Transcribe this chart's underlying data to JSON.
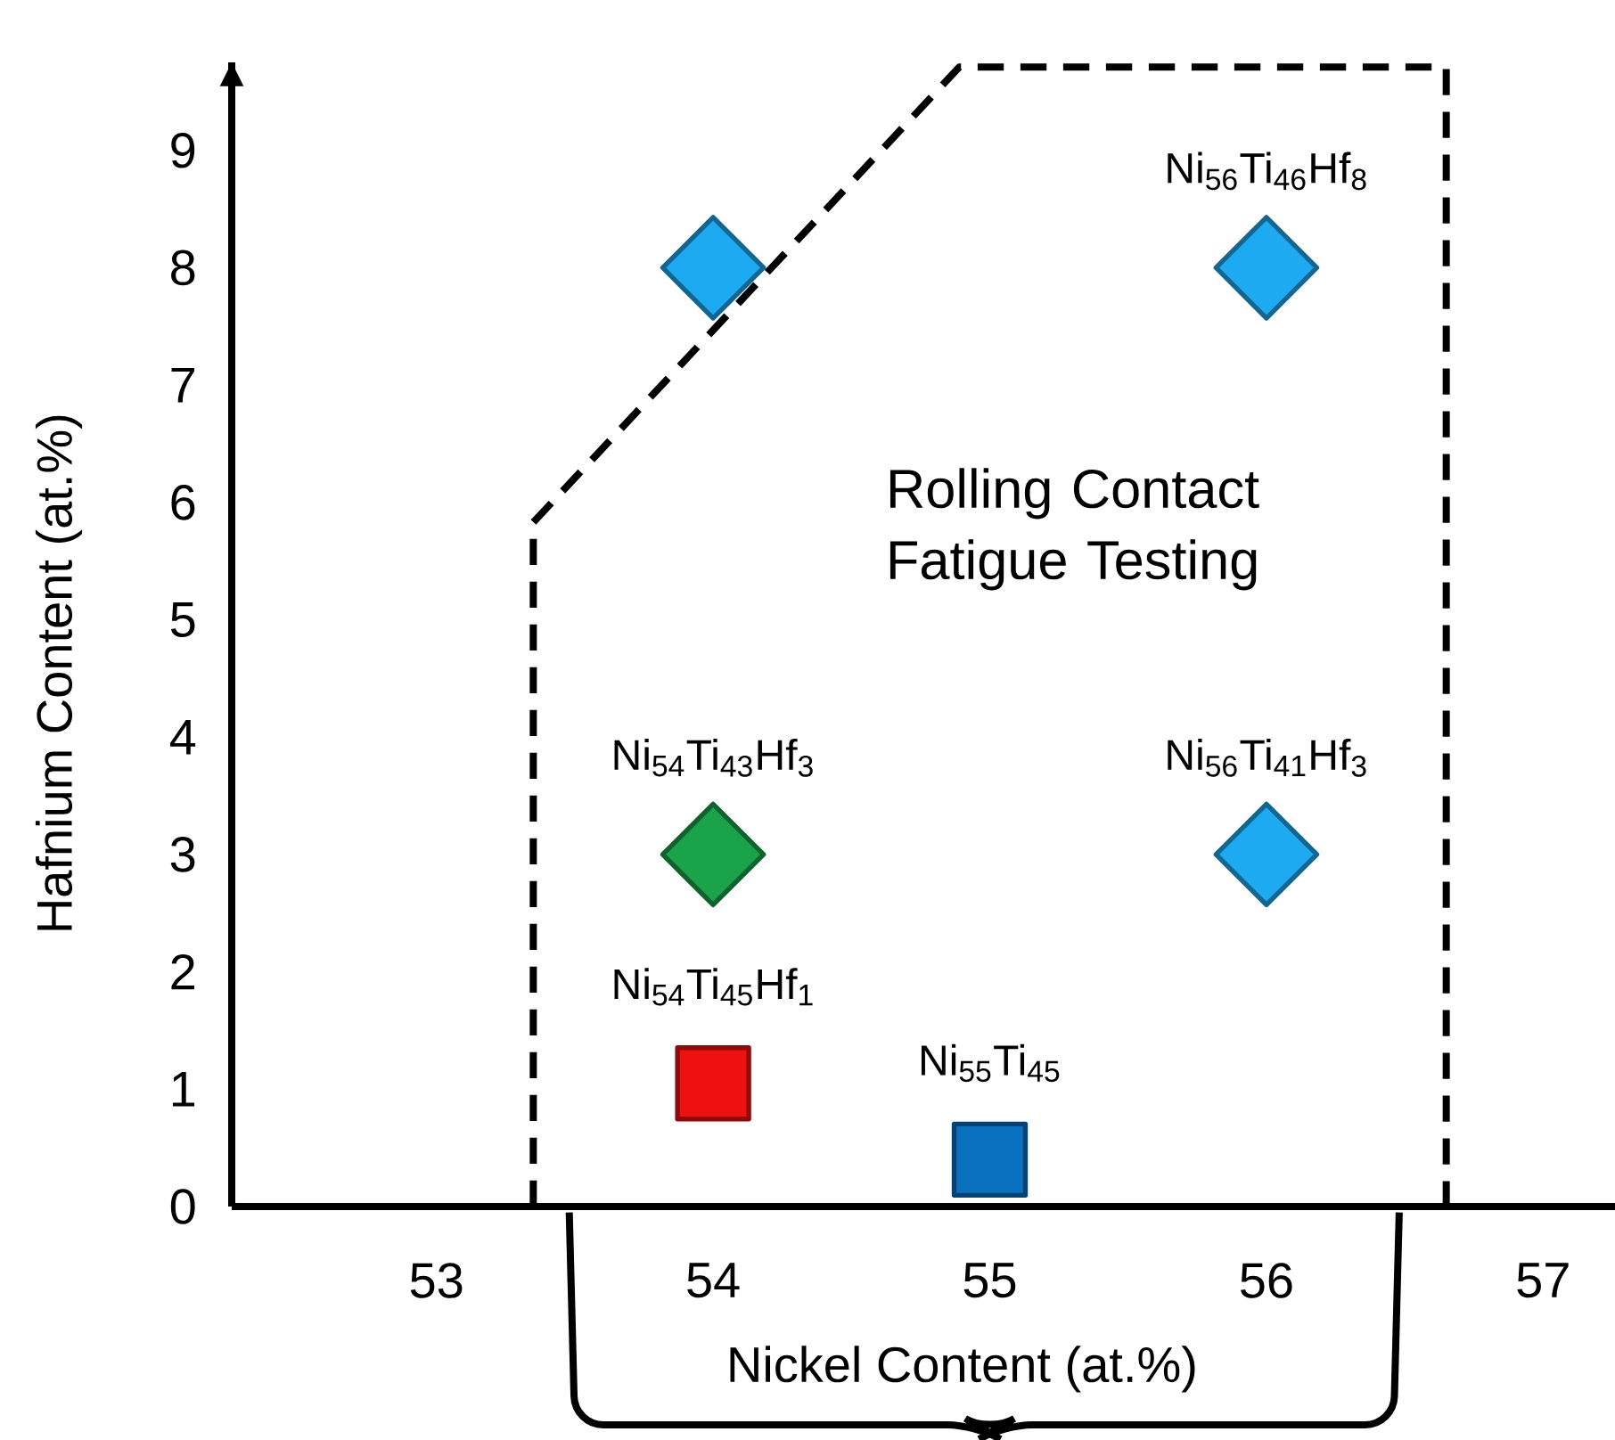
{
  "chart_data": {
    "type": "scatter",
    "xlabel": "Nickel Content (at.%)",
    "ylabel": "Hafnium Content (at.%)",
    "annotations": [
      "Rolling Contact Fatigue Testing"
    ],
    "xlim": [
      52.26,
      57.26
    ],
    "ylim": [
      0,
      9.75
    ],
    "xticks": [
      53,
      54,
      55,
      56,
      57
    ],
    "yticks": [
      0,
      1,
      2,
      3,
      4,
      5,
      6,
      7,
      8,
      9
    ],
    "series": [
      {
        "type": "line",
        "color": "#000000",
        "line_style": "dashed",
        "marker": "none",
        "x": [
          53.35,
          53.35,
          54.89,
          56.65,
          56.65
        ],
        "values": [
          0,
          5.83,
          9.71,
          9.71,
          0
        ]
      },
      {
        "color": "#1eaaf1",
        "marker": "diamond",
        "x": [
          54
        ],
        "values": [
          8
        ]
      },
      {
        "name": "Ni$_{56}$Ti$_{46}$Hf$_{8}$",
        "color": "#1eaaf1",
        "marker": "diamond",
        "x": [
          56
        ],
        "values": [
          8
        ]
      },
      {
        "name": "Ni$_{54}$Ti$_{43}$Hf$_{3}$",
        "color": "#1aa34a",
        "marker": "diamond",
        "x": [
          54
        ],
        "values": [
          3
        ]
      },
      {
        "name": "Ni$_{56}$Ti$_{41}$Hf$_{3}$",
        "color": "#1eaaf1",
        "marker": "diamond",
        "x": [
          56
        ],
        "values": [
          3
        ]
      },
      {
        "name": "Ni$_{54}$Ti$_{45}$Hf$_{1}$",
        "color": "#ee1111",
        "marker": "square",
        "x": [
          54
        ],
        "values": [
          1.05
        ]
      },
      {
        "name": "Ni$_{55}$Ti$_{45}$",
        "color": "#0a70c0",
        "marker": "square",
        "x": [
          55
        ],
        "values": [
          0.4
        ]
      }
    ]
  }
}
